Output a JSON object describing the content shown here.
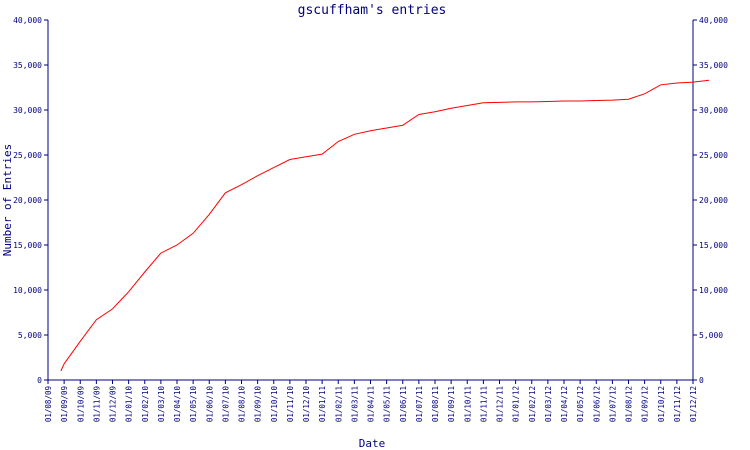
{
  "chart_data": {
    "type": "line",
    "title": "gscuffham's entries",
    "xlabel": "Date",
    "ylabel": "Number of Entries",
    "ylim": [
      0,
      40000
    ],
    "yticks": [
      "0",
      "5,000",
      "10,000",
      "15,000",
      "20,000",
      "25,000",
      "30,000",
      "35,000",
      "40,000"
    ],
    "grid": false,
    "categories": [
      "01/08/09",
      "01/09/09",
      "01/10/09",
      "01/11/09",
      "01/12/09",
      "01/01/10",
      "01/02/10",
      "01/03/10",
      "01/04/10",
      "01/05/10",
      "01/06/10",
      "01/07/10",
      "01/08/10",
      "01/09/10",
      "01/10/10",
      "01/11/10",
      "01/12/10",
      "01/01/11",
      "01/02/11",
      "01/03/11",
      "01/04/11",
      "01/05/11",
      "01/06/11",
      "01/07/11",
      "01/08/11",
      "01/09/11",
      "01/10/11",
      "01/11/11",
      "01/12/11",
      "01/01/12",
      "01/02/12",
      "01/03/12",
      "01/04/12",
      "01/05/12",
      "01/06/12",
      "01/07/12",
      "01/08/12",
      "01/09/12",
      "01/10/12",
      "01/11/12",
      "01/12/12"
    ],
    "series": [
      {
        "color": "#ff0000",
        "points": [
          {
            "x": 0.8,
            "y": 1000
          },
          {
            "x": 1.0,
            "y": 1800
          },
          {
            "x": 2.0,
            "y": 4300
          },
          {
            "x": 3.0,
            "y": 6700
          },
          {
            "x": 4.0,
            "y": 7900
          },
          {
            "x": 5.0,
            "y": 9800
          },
          {
            "x": 6.0,
            "y": 12000
          },
          {
            "x": 7.0,
            "y": 14100
          },
          {
            "x": 8.0,
            "y": 15000
          },
          {
            "x": 9.0,
            "y": 16300
          },
          {
            "x": 10.0,
            "y": 18400
          },
          {
            "x": 11.0,
            "y": 20800
          },
          {
            "x": 12.0,
            "y": 21700
          },
          {
            "x": 13.0,
            "y": 22700
          },
          {
            "x": 14.0,
            "y": 23600
          },
          {
            "x": 15.0,
            "y": 24500
          },
          {
            "x": 16.0,
            "y": 24800
          },
          {
            "x": 17.0,
            "y": 25100
          },
          {
            "x": 18.0,
            "y": 26500
          },
          {
            "x": 19.0,
            "y": 27300
          },
          {
            "x": 20.0,
            "y": 27700
          },
          {
            "x": 21.0,
            "y": 28000
          },
          {
            "x": 22.0,
            "y": 28300
          },
          {
            "x": 23.0,
            "y": 29500
          },
          {
            "x": 24.0,
            "y": 29800
          },
          {
            "x": 25.0,
            "y": 30200
          },
          {
            "x": 26.0,
            "y": 30500
          },
          {
            "x": 27.0,
            "y": 30800
          },
          {
            "x": 28.0,
            "y": 30850
          },
          {
            "x": 29.0,
            "y": 30900
          },
          {
            "x": 30.0,
            "y": 30900
          },
          {
            "x": 31.0,
            "y": 30950
          },
          {
            "x": 32.0,
            "y": 31000
          },
          {
            "x": 33.0,
            "y": 31000
          },
          {
            "x": 34.0,
            "y": 31050
          },
          {
            "x": 35.0,
            "y": 31100
          },
          {
            "x": 36.0,
            "y": 31200
          },
          {
            "x": 37.0,
            "y": 31800
          },
          {
            "x": 38.0,
            "y": 32800
          },
          {
            "x": 39.0,
            "y": 33000
          },
          {
            "x": 40.0,
            "y": 33100
          },
          {
            "x": 41.0,
            "y": 33300
          }
        ]
      }
    ],
    "colors": {
      "axis": "#000080",
      "line": "#ff0000",
      "text": "#000080",
      "background": "#ffffff"
    }
  }
}
